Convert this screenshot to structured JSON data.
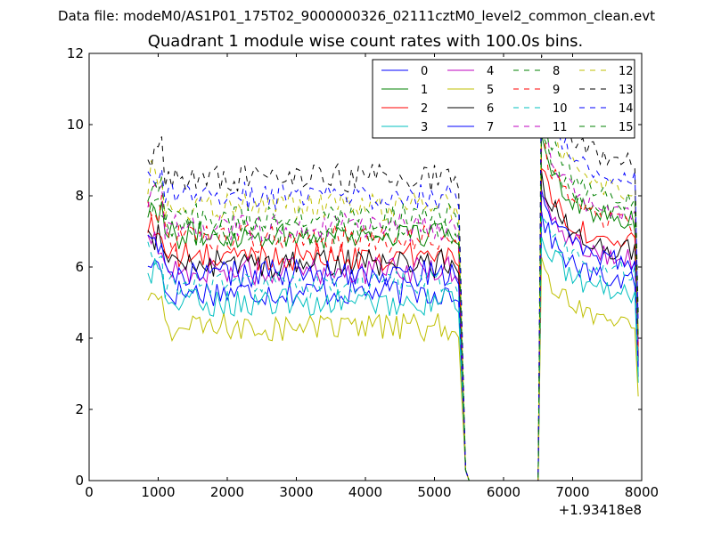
{
  "suptitle": "Data file: modeM0/AS1P01_175T02_9000000326_02111cztM0_level2_common_clean.evt",
  "chart_data": {
    "type": "line",
    "title": "Quadrant 1 module wise count rates with 100.0s bins.",
    "xlabel": "",
    "ylabel": "",
    "xlim": [
      0,
      8000
    ],
    "ylim": [
      0,
      12
    ],
    "x_offset_label": "+1.93418e8",
    "xticks": [
      "0",
      "1000",
      "2000",
      "3000",
      "4000",
      "5000",
      "6000",
      "7000",
      "8000"
    ],
    "yticks": [
      "0",
      "2",
      "4",
      "6",
      "8",
      "10",
      "12"
    ],
    "grid": false,
    "legend_position": "top-right",
    "gap": [
      5500,
      6500
    ],
    "bins_x_segment1_start": 850,
    "bins_x_segment1_end": 5350,
    "bins_x_segment2_start": 6550,
    "bins_x_segment2_end": 7950,
    "series": [
      {
        "name": "0",
        "color": "#0000ff",
        "dash": "solid",
        "level": 5.3
      },
      {
        "name": "1",
        "color": "#008000",
        "dash": "solid",
        "level": 6.9
      },
      {
        "name": "2",
        "color": "#ff0000",
        "dash": "solid",
        "level": 6.3
      },
      {
        "name": "3",
        "color": "#00bfbf",
        "dash": "solid",
        "level": 5.0
      },
      {
        "name": "4",
        "color": "#bf00bf",
        "dash": "solid",
        "level": 5.9
      },
      {
        "name": "5",
        "color": "#bfbf00",
        "dash": "solid",
        "level": 4.3
      },
      {
        "name": "6",
        "color": "#000000",
        "dash": "solid",
        "level": 6.1
      },
      {
        "name": "7",
        "color": "#0000ff",
        "dash": "solid",
        "level": 5.8
      },
      {
        "name": "8",
        "color": "#008000",
        "dash": "dashed",
        "level": 7.0
      },
      {
        "name": "9",
        "color": "#ff0000",
        "dash": "dashed",
        "level": 6.8
      },
      {
        "name": "10",
        "color": "#00bfbf",
        "dash": "dashed",
        "level": 5.5
      },
      {
        "name": "11",
        "color": "#bf00bf",
        "dash": "dashed",
        "level": 7.1
      },
      {
        "name": "12",
        "color": "#bfbf00",
        "dash": "dashed",
        "level": 7.7
      },
      {
        "name": "13",
        "color": "#000000",
        "dash": "dashed",
        "level": 8.5
      },
      {
        "name": "14",
        "color": "#0000ff",
        "dash": "dashed",
        "level": 8.0
      },
      {
        "name": "15",
        "color": "#008000",
        "dash": "dashed",
        "level": 7.4
      }
    ]
  }
}
